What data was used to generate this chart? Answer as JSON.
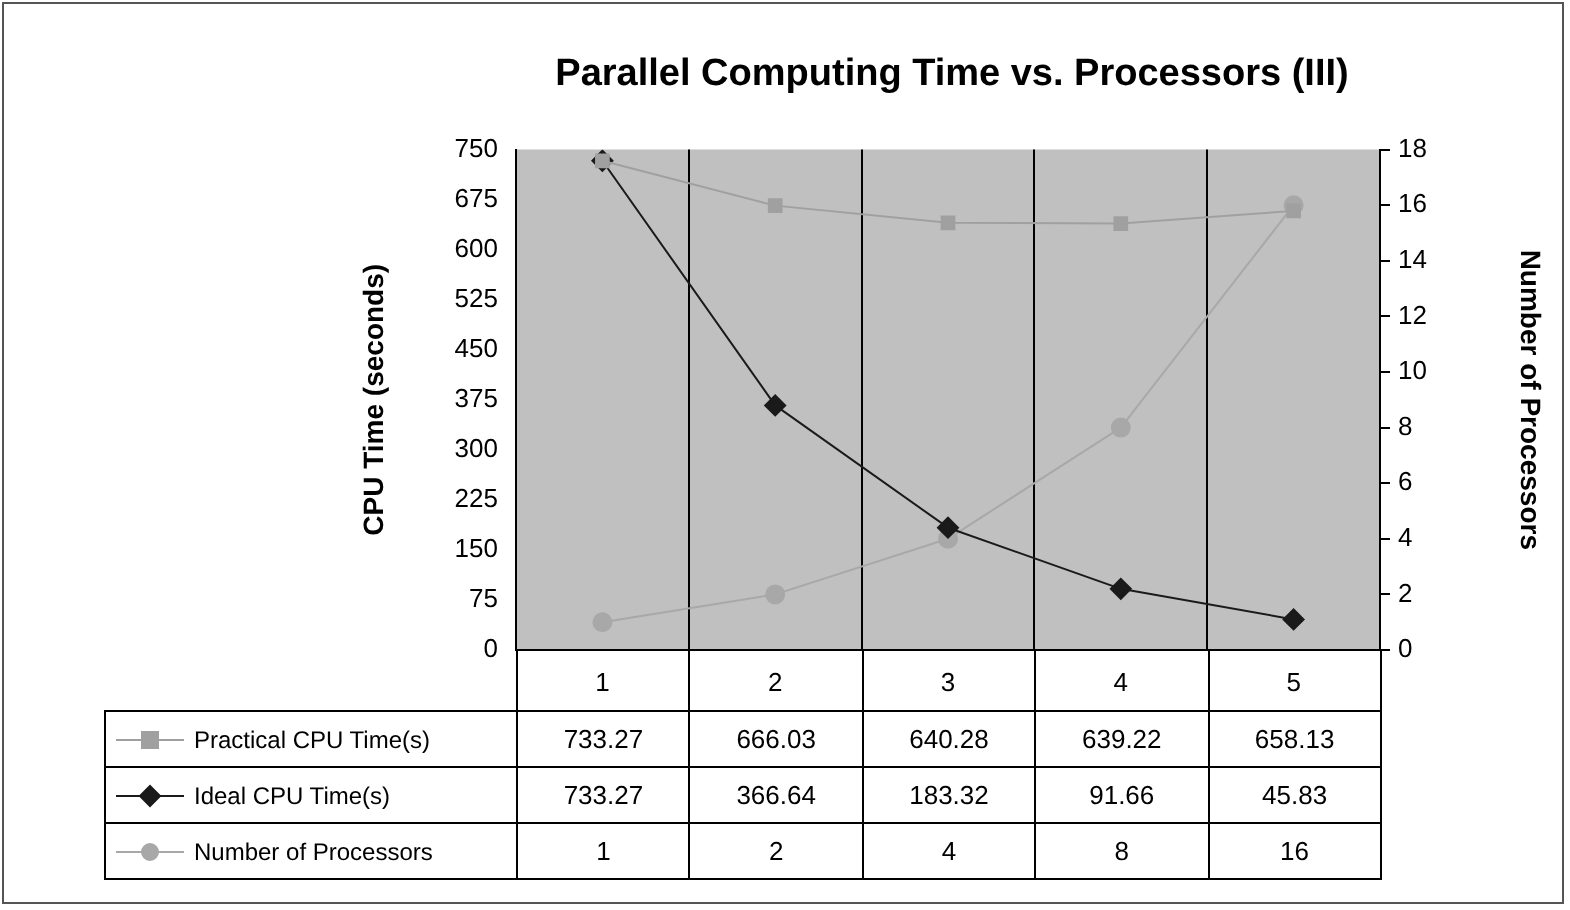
{
  "chart_data": {
    "type": "line",
    "title": "Parallel Computing Time vs. Processors (III)",
    "ylabel": "CPU Time (seconds)",
    "y2label": "Number of Processors",
    "categories": [
      "1",
      "2",
      "3",
      "4",
      "5"
    ],
    "series": [
      {
        "name": "Practical CPU Time(s)",
        "color": "#a0a0a0",
        "marker": "square",
        "values": [
          733.27,
          666.03,
          640.28,
          639.22,
          658.13
        ]
      },
      {
        "name": "Ideal CPU Time(s)",
        "color": "#1a1a1a",
        "marker": "diamond",
        "values": [
          733.27,
          366.64,
          183.32,
          91.66,
          45.83
        ]
      },
      {
        "name": "Number of Processors",
        "color": "#a8a8a8",
        "marker": "circle",
        "axis": "y2",
        "values": [
          1,
          2,
          4,
          8,
          16
        ]
      }
    ],
    "ylim": [
      0,
      750
    ],
    "yticks": [
      0,
      75,
      150,
      225,
      300,
      375,
      450,
      525,
      600,
      675,
      750
    ],
    "y2lim": [
      0,
      18
    ],
    "y2ticks": [
      0,
      2,
      4,
      6,
      8,
      10,
      12,
      14,
      16,
      18
    ],
    "grid": "x",
    "legend": "bottom",
    "data_labels": true
  }
}
